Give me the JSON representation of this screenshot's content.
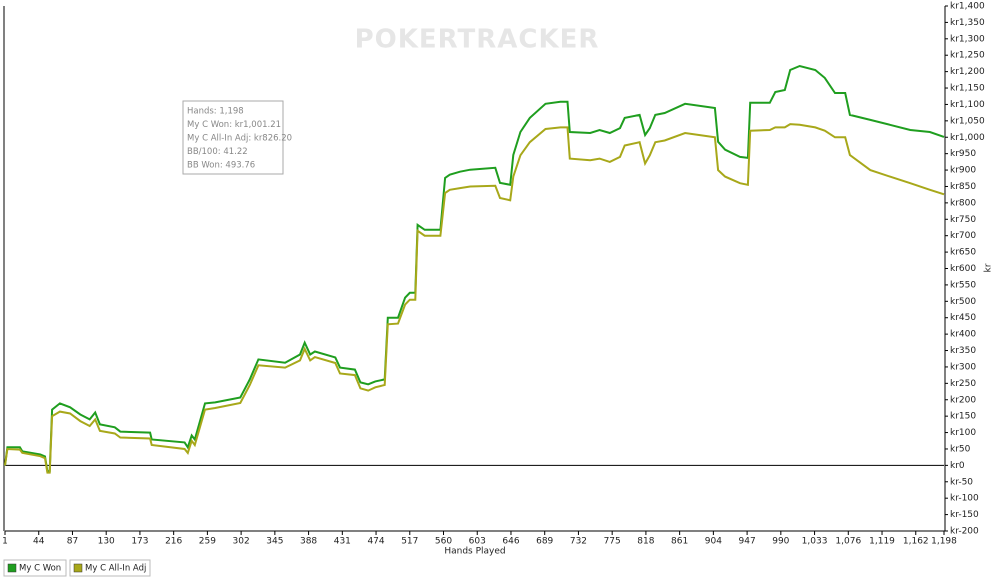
{
  "chart_data": {
    "type": "line",
    "watermark": "POKERTRACKER",
    "x_label": "Hands Played",
    "y_label": "kr",
    "tooltip": [
      "Hands: 1,198",
      "My C Won: kr1,001.21",
      "My C All-In Adj: kr826.20",
      "BB/100: 41.22",
      "BB Won: 493.76"
    ],
    "zero_line": true,
    "x": [
      1,
      4,
      20,
      23,
      46,
      52,
      55,
      58,
      61,
      71,
      84,
      97,
      109,
      116,
      122,
      141,
      148,
      186,
      188,
      230,
      234,
      239,
      243,
      256,
      269,
      301,
      313,
      324,
      358,
      377,
      383,
      390,
      396,
      422,
      428,
      447,
      454,
      464,
      473,
      485,
      489,
      502,
      511,
      517,
      524,
      527,
      536,
      556,
      562,
      568,
      581,
      594,
      626,
      632,
      645,
      649,
      658,
      670,
      690,
      709,
      718,
      721,
      747,
      759,
      772,
      785,
      791,
      810,
      817,
      823,
      830,
      842,
      868,
      906,
      910,
      919,
      938,
      948,
      951,
      976,
      983,
      995,
      1002,
      1014,
      1034,
      1046,
      1059,
      1072,
      1078,
      1104,
      1129,
      1155,
      1180,
      1198
    ],
    "series": [
      {
        "name": "My C Won",
        "color": "#1f9e1f",
        "values": [
          0,
          55,
          55,
          43,
          33,
          27,
          -18,
          -18,
          170,
          189,
          177,
          155,
          140,
          161,
          125,
          116,
          103,
          100,
          79,
          70,
          55,
          91,
          79,
          189,
          192,
          207,
          262,
          323,
          313,
          338,
          374,
          338,
          347,
          329,
          298,
          292,
          253,
          247,
          256,
          262,
          450,
          450,
          511,
          526,
          526,
          733,
          718,
          718,
          876,
          886,
          895,
          901,
          907,
          861,
          855,
          946,
          1016,
          1059,
          1102,
          1108,
          1108,
          1016,
          1013,
          1022,
          1013,
          1028,
          1059,
          1068,
          1007,
          1028,
          1068,
          1074,
          1102,
          1089,
          986,
          962,
          940,
          937,
          1105,
          1105,
          1138,
          1144,
          1205,
          1217,
          1205,
          1181,
          1135,
          1135,
          1068,
          1053,
          1038,
          1022,
          1016,
          1001.21
        ]
      },
      {
        "name": "My C All-In Adj",
        "color": "#a8a81a",
        "values": [
          0,
          50,
          48,
          38,
          28,
          22,
          -22,
          -22,
          150,
          164,
          158,
          135,
          120,
          140,
          105,
          97,
          85,
          82,
          62,
          50,
          38,
          75,
          62,
          170,
          175,
          190,
          245,
          305,
          298,
          320,
          355,
          320,
          330,
          312,
          280,
          275,
          235,
          228,
          238,
          245,
          430,
          432,
          490,
          505,
          505,
          715,
          700,
          700,
          830,
          840,
          845,
          850,
          852,
          815,
          808,
          880,
          945,
          985,
          1025,
          1030,
          1030,
          935,
          930,
          935,
          925,
          940,
          975,
          985,
          920,
          945,
          985,
          990,
          1013,
          1000,
          900,
          880,
          860,
          855,
          1020,
          1022,
          1030,
          1030,
          1040,
          1038,
          1030,
          1020,
          1000,
          1000,
          946,
          900,
          880,
          860,
          840,
          826.2
        ]
      }
    ],
    "xlim": [
      1,
      1198
    ],
    "xticks": [
      1,
      44,
      87,
      130,
      173,
      216,
      259,
      302,
      345,
      388,
      431,
      474,
      517,
      560,
      603,
      646,
      689,
      732,
      775,
      818,
      861,
      904,
      947,
      990,
      {
        "value": 1033,
        "label": "1,033"
      },
      {
        "value": 1076,
        "label": "1,076"
      },
      {
        "value": 1119,
        "label": "1,119"
      },
      {
        "value": 1162,
        "label": "1,162"
      },
      {
        "value": 1198,
        "label": "1,198"
      }
    ],
    "ylim": [
      -200,
      1400
    ],
    "yticks": [
      {
        "value": -200,
        "label": "kr-200"
      },
      {
        "value": -150,
        "label": "kr-150"
      },
      {
        "value": -100,
        "label": "kr-100"
      },
      {
        "value": -50,
        "label": "kr-50"
      },
      {
        "value": 0,
        "label": "kr0"
      },
      {
        "value": 50,
        "label": "kr50"
      },
      {
        "value": 100,
        "label": "kr100"
      },
      {
        "value": 150,
        "label": "kr150"
      },
      {
        "value": 200,
        "label": "kr200"
      },
      {
        "value": 250,
        "label": "kr250"
      },
      {
        "value": 300,
        "label": "kr300"
      },
      {
        "value": 350,
        "label": "kr350"
      },
      {
        "value": 400,
        "label": "kr400"
      },
      {
        "value": 450,
        "label": "kr450"
      },
      {
        "value": 500,
        "label": "kr500"
      },
      {
        "value": 550,
        "label": "kr550"
      },
      {
        "value": 600,
        "label": "kr600"
      },
      {
        "value": 650,
        "label": "kr650"
      },
      {
        "value": 700,
        "label": "kr700"
      },
      {
        "value": 750,
        "label": "kr750"
      },
      {
        "value": 800,
        "label": "kr800"
      },
      {
        "value": 850,
        "label": "kr850"
      },
      {
        "value": 900,
        "label": "kr900"
      },
      {
        "value": 950,
        "label": "kr950"
      },
      {
        "value": 1000,
        "label": "kr1,000"
      },
      {
        "value": 1050,
        "label": "kr1,050"
      },
      {
        "value": 1100,
        "label": "kr1,100"
      },
      {
        "value": 1150,
        "label": "kr1,150"
      },
      {
        "value": 1200,
        "label": "kr1,200"
      },
      {
        "value": 1250,
        "label": "kr1,250"
      },
      {
        "value": 1300,
        "label": "kr1,300"
      },
      {
        "value": 1350,
        "label": "kr1,350"
      },
      {
        "value": 1400,
        "label": "kr1,400"
      }
    ]
  }
}
